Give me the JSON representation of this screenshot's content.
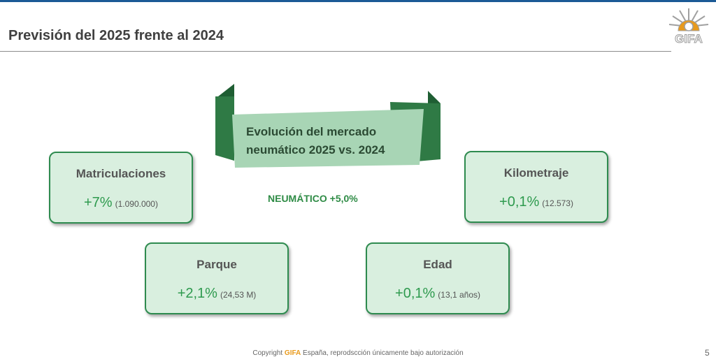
{
  "slide": {
    "title": "Previsión del 2025 frente al 2024",
    "logo_text": "GIFA",
    "banner": {
      "line1": "Evolución del mercado",
      "line2": "neumático 2025 vs. 2024"
    },
    "center_value": "NEUMÁTICO +5,0%",
    "cards": {
      "matriculaciones": {
        "label": "Matriculaciones",
        "pct": "+7%",
        "detail": "(1.090.000)"
      },
      "kilometraje": {
        "label": "Kilometraje",
        "pct": "+0,1%",
        "detail": "(12.573)"
      },
      "parque": {
        "label": "Parque",
        "pct": "+2,1%",
        "detail": "(24,53 M)"
      },
      "edad": {
        "label": "Edad",
        "pct": "+0,1%",
        "detail": "(13,1 años)"
      }
    },
    "footer": {
      "prefix": "Copyright ",
      "brand": "GIFA",
      "suffix": " España, reprodscción únicamente bajo autorización"
    },
    "page_number": "5"
  },
  "colors": {
    "accent_green": "#2e8b4f",
    "card_fill": "#d9efdf",
    "banner_dark": "#2f7a45",
    "banner_light": "#a8d5b5",
    "top_bar": "#1b5a96",
    "brand_orange": "#e89a1c"
  },
  "icons": {
    "logo": "gifa-sun-logo-icon"
  }
}
